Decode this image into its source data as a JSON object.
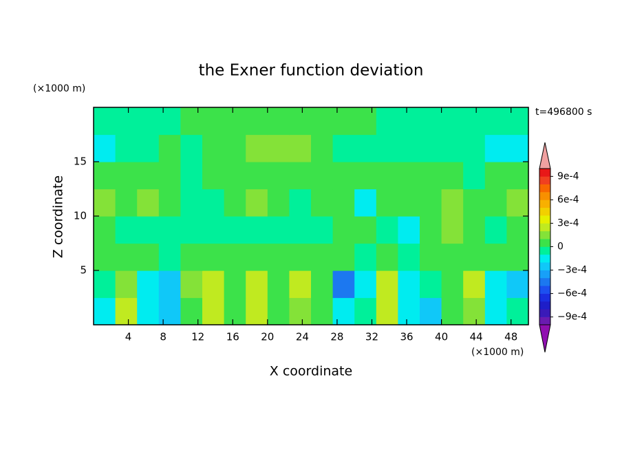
{
  "chart_data": {
    "type": "contour",
    "title": "the Exner function deviation",
    "x_label": "X coordinate",
    "y_label": "Z coordinate",
    "x_unit": "(×1000 m)",
    "y_unit": "(×1000 m)",
    "annotation": "t=496800 s",
    "xlim": [
      0,
      50
    ],
    "ylim": [
      0,
      20
    ],
    "xticks": [
      4,
      8,
      12,
      16,
      20,
      24,
      28,
      32,
      36,
      40,
      44,
      48
    ],
    "yticks": [
      5,
      10,
      15
    ],
    "x": [
      1.25,
      3.75,
      6.25,
      8.75,
      11.25,
      13.75,
      16.25,
      18.75,
      21.25,
      23.75,
      26.25,
      28.75,
      31.25,
      33.75,
      36.25,
      38.75,
      41.25,
      43.75,
      46.25,
      48.75
    ],
    "y": [
      1.25,
      3.75,
      6.25,
      8.75,
      11.25,
      13.75,
      16.25,
      18.75
    ],
    "z": [
      [
        -0.00015,
        0.00025,
        -0.00015,
        -0.00025,
        5e-05,
        0.00025,
        5e-05,
        0.00025,
        5e-05,
        0.00015,
        5e-05,
        -0.00015,
        -5e-05,
        0.00025,
        -0.00015,
        -0.00025,
        5e-05,
        0.00015,
        -0.00015,
        -5e-05
      ],
      [
        -5e-05,
        0.00015,
        -0.00015,
        -0.00025,
        0.00015,
        0.00025,
        5e-05,
        0.00025,
        5e-05,
        0.00025,
        5e-05,
        -0.00045,
        -0.00015,
        0.00025,
        -0.00015,
        -5e-05,
        5e-05,
        0.00025,
        -0.00015,
        -0.00025
      ],
      [
        5e-05,
        5e-05,
        5e-05,
        -5e-05,
        5e-05,
        5e-05,
        5e-05,
        5e-05,
        5e-05,
        5e-05,
        5e-05,
        5e-05,
        -5e-05,
        5e-05,
        -5e-05,
        5e-05,
        5e-05,
        5e-05,
        5e-05,
        5e-05
      ],
      [
        5e-05,
        -5e-05,
        -5e-05,
        -5e-05,
        -5e-05,
        -5e-05,
        -5e-05,
        -5e-05,
        -5e-05,
        -5e-05,
        -5e-05,
        5e-05,
        5e-05,
        -5e-05,
        -0.00015,
        5e-05,
        0.00015,
        5e-05,
        -5e-05,
        5e-05
      ],
      [
        0.00015,
        5e-05,
        0.00015,
        5e-05,
        -5e-05,
        -5e-05,
        5e-05,
        0.00015,
        5e-05,
        -5e-05,
        5e-05,
        5e-05,
        -0.00015,
        5e-05,
        5e-05,
        5e-05,
        0.00015,
        5e-05,
        5e-05,
        0.00015
      ],
      [
        5e-05,
        5e-05,
        5e-05,
        5e-05,
        -5e-05,
        5e-05,
        5e-05,
        5e-05,
        5e-05,
        5e-05,
        5e-05,
        5e-05,
        5e-05,
        5e-05,
        5e-05,
        5e-05,
        5e-05,
        -5e-05,
        5e-05,
        5e-05
      ],
      [
        -0.00015,
        -5e-05,
        -5e-05,
        5e-05,
        -5e-05,
        5e-05,
        5e-05,
        0.00015,
        0.00015,
        0.00015,
        5e-05,
        -5e-05,
        -5e-05,
        -5e-05,
        -5e-05,
        -5e-05,
        -5e-05,
        -5e-05,
        -0.00015,
        -0.00015
      ],
      [
        -5e-05,
        -5e-05,
        -5e-05,
        -5e-05,
        5e-05,
        5e-05,
        5e-05,
        5e-05,
        5e-05,
        5e-05,
        5e-05,
        5e-05,
        5e-05,
        -5e-05,
        -5e-05,
        -5e-05,
        -5e-05,
        -5e-05,
        -5e-05,
        -5e-05
      ]
    ],
    "clim": [
      -0.001,
      0.001
    ],
    "colors": [
      "#6a1bb0",
      "#3a1ab8",
      "#1e1ec8",
      "#1a2ee0",
      "#1c50f0",
      "#1c78f0",
      "#18a0f8",
      "#10c8f8",
      "#00ecf0",
      "#00f09a",
      "#3ce24a",
      "#84e238",
      "#c0ea20",
      "#e6f000",
      "#f2d000",
      "#f8b000",
      "#f89000",
      "#f86800",
      "#f04020",
      "#e81818"
    ],
    "under_color": "#9010b0",
    "over_color": "#f0a0a0",
    "cticks": [
      {
        "value": 0.0009,
        "label": "9e-4"
      },
      {
        "value": 0.0006,
        "label": "6e-4"
      },
      {
        "value": 0.0003,
        "label": "3e-4"
      },
      0,
      {
        "value": -0.0003,
        "label": "−3e-4"
      },
      {
        "value": -0.0006,
        "label": "−6e-4"
      },
      {
        "value": -0.0009,
        "label": "−9e-4"
      }
    ]
  }
}
